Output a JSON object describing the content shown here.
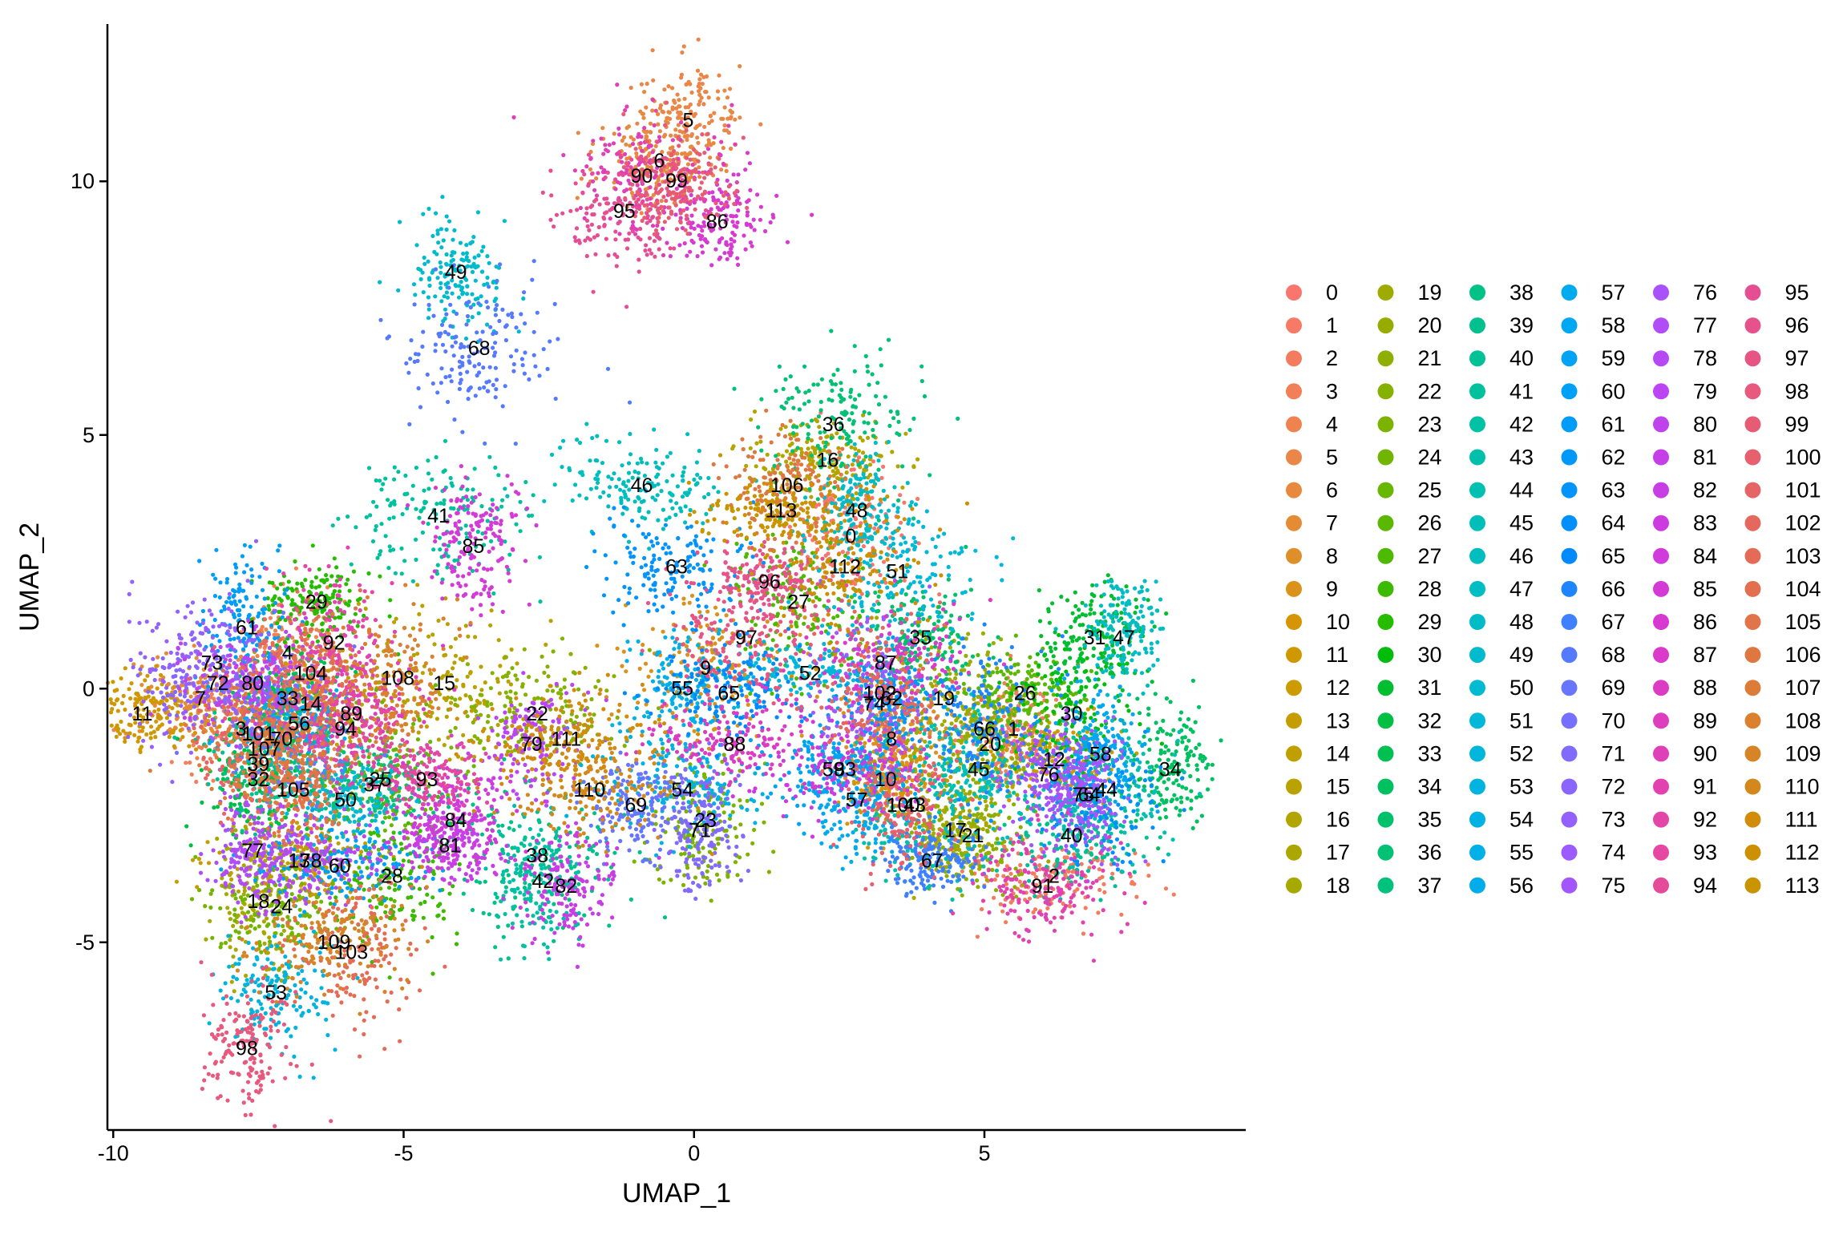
{
  "chart_data": {
    "type": "scatter",
    "title": "",
    "xlabel": "UMAP_1",
    "ylabel": "UMAP_2",
    "xlim": [
      -10.1,
      9.5
    ],
    "ylim": [
      -8.7,
      13.1
    ],
    "xticks": [
      -10,
      -5,
      0,
      5
    ],
    "yticks": [
      -5,
      0,
      5,
      10
    ],
    "xtick_labels": [
      "-10",
      "-5",
      "0",
      "5"
    ],
    "ytick_labels": [
      "-5",
      "0",
      "5",
      "10"
    ],
    "grid": false,
    "legend_position": "right",
    "legend_columns": 7,
    "clusters": [
      {
        "name": "0",
        "color": "#F8766D",
        "label_x": 2.7,
        "label_y": 3.0
      },
      {
        "name": "1",
        "color": "#F67A66",
        "label_x": 5.5,
        "label_y": -0.8
      },
      {
        "name": "2",
        "color": "#F37C5F",
        "label_x": 6.2,
        "label_y": -3.7
      },
      {
        "name": "3",
        "color": "#F18058",
        "label_x": -7.8,
        "label_y": -0.8
      },
      {
        "name": "4",
        "color": "#EE8350",
        "label_x": -7.0,
        "label_y": 0.7
      },
      {
        "name": "5",
        "color": "#EA8648",
        "label_x": -0.1,
        "label_y": 11.2
      },
      {
        "name": "6",
        "color": "#E7893F",
        "label_x": -0.6,
        "label_y": 10.4
      },
      {
        "name": "7",
        "color": "#E38C34",
        "label_x": -8.5,
        "label_y": -0.2
      },
      {
        "name": "8",
        "color": "#DF8F29",
        "label_x": 3.4,
        "label_y": -1.0
      },
      {
        "name": "9",
        "color": "#DA921A",
        "label_x": 0.2,
        "label_y": 0.4
      },
      {
        "name": "10",
        "color": "#D59505",
        "label_x": 3.3,
        "label_y": -1.8
      },
      {
        "name": "11",
        "color": "#D09800",
        "label_x": -9.5,
        "label_y": -0.5
      },
      {
        "name": "12",
        "color": "#CB9B00",
        "label_x": 6.2,
        "label_y": -1.4
      },
      {
        "name": "13",
        "color": "#C59D00",
        "label_x": -6.8,
        "label_y": -3.4
      },
      {
        "name": "14",
        "color": "#BFA000",
        "label_x": -6.6,
        "label_y": -0.3
      },
      {
        "name": "15",
        "color": "#B9A200",
        "label_x": -4.3,
        "label_y": 0.1
      },
      {
        "name": "16",
        "color": "#B3A500",
        "label_x": 2.3,
        "label_y": 4.5
      },
      {
        "name": "17",
        "color": "#ACA700",
        "label_x": 4.5,
        "label_y": -2.8
      },
      {
        "name": "18",
        "color": "#A5A900",
        "label_x": -7.5,
        "label_y": -4.2
      },
      {
        "name": "19",
        "color": "#9EAB00",
        "label_x": 4.3,
        "label_y": -0.2
      },
      {
        "name": "20",
        "color": "#96AD00",
        "label_x": 5.1,
        "label_y": -1.1
      },
      {
        "name": "21",
        "color": "#8EAF00",
        "label_x": 4.8,
        "label_y": -2.9
      },
      {
        "name": "22",
        "color": "#85B100",
        "label_x": -2.7,
        "label_y": -0.5
      },
      {
        "name": "23",
        "color": "#7CB300",
        "label_x": 0.2,
        "label_y": -2.6
      },
      {
        "name": "24",
        "color": "#72B500",
        "label_x": -7.1,
        "label_y": -4.3
      },
      {
        "name": "25",
        "color": "#67B600",
        "label_x": -5.4,
        "label_y": -1.8
      },
      {
        "name": "26",
        "color": "#5BB800",
        "label_x": 5.7,
        "label_y": -0.1
      },
      {
        "name": "27",
        "color": "#4DB900",
        "label_x": 1.8,
        "label_y": 1.7
      },
      {
        "name": "28",
        "color": "#3CBA00",
        "label_x": -5.2,
        "label_y": -3.7
      },
      {
        "name": "29",
        "color": "#26BC00",
        "label_x": -6.5,
        "label_y": 1.7
      },
      {
        "name": "30",
        "color": "#00BD0B",
        "label_x": 6.5,
        "label_y": -0.5
      },
      {
        "name": "31",
        "color": "#00BE2F",
        "label_x": 6.9,
        "label_y": 1.0
      },
      {
        "name": "32",
        "color": "#00BF43",
        "label_x": -7.5,
        "label_y": -1.8
      },
      {
        "name": "33",
        "color": "#00C052",
        "label_x": -7.0,
        "label_y": -0.2
      },
      {
        "name": "34",
        "color": "#00C05F",
        "label_x": 8.2,
        "label_y": -1.6
      },
      {
        "name": "35",
        "color": "#00C16A",
        "label_x": 3.9,
        "label_y": 1.0
      },
      {
        "name": "36",
        "color": "#00C174",
        "label_x": 2.4,
        "label_y": 5.2
      },
      {
        "name": "37",
        "color": "#00C17D",
        "label_x": -5.5,
        "label_y": -1.9
      },
      {
        "name": "38",
        "color": "#00C186",
        "label_x": -2.7,
        "label_y": -3.3
      },
      {
        "name": "39",
        "color": "#00C18E",
        "label_x": -7.5,
        "label_y": -1.5
      },
      {
        "name": "40",
        "color": "#00C196",
        "label_x": 6.5,
        "label_y": -2.9
      },
      {
        "name": "41",
        "color": "#00C19D",
        "label_x": -4.4,
        "label_y": 3.4
      },
      {
        "name": "42",
        "color": "#00C1A4",
        "label_x": -2.6,
        "label_y": -3.8
      },
      {
        "name": "43",
        "color": "#00C0AB",
        "label_x": 3.8,
        "label_y": -2.3
      },
      {
        "name": "44",
        "color": "#00C0B1",
        "label_x": 7.1,
        "label_y": -2.0
      },
      {
        "name": "45",
        "color": "#00BFB8",
        "label_x": 4.9,
        "label_y": -1.6
      },
      {
        "name": "46",
        "color": "#00BEBD",
        "label_x": -0.9,
        "label_y": 4.0
      },
      {
        "name": "47",
        "color": "#00BDC3",
        "label_x": 7.4,
        "label_y": 1.0
      },
      {
        "name": "48",
        "color": "#00BCC8",
        "label_x": 2.8,
        "label_y": 3.5
      },
      {
        "name": "49",
        "color": "#00BBCD",
        "label_x": -4.1,
        "label_y": 8.2
      },
      {
        "name": "50",
        "color": "#00BAD2",
        "label_x": -6.0,
        "label_y": -2.2
      },
      {
        "name": "51",
        "color": "#00B8D7",
        "label_x": 3.5,
        "label_y": 2.3
      },
      {
        "name": "52",
        "color": "#00B6DB",
        "label_x": 2.0,
        "label_y": 0.3
      },
      {
        "name": "53",
        "color": "#00B4DF",
        "label_x": -7.2,
        "label_y": -6.0
      },
      {
        "name": "54",
        "color": "#00B2E3",
        "label_x": -0.2,
        "label_y": -2.0
      },
      {
        "name": "55",
        "color": "#00B0E7",
        "label_x": -0.2,
        "label_y": 0.0
      },
      {
        "name": "56",
        "color": "#00ADEA",
        "label_x": -6.8,
        "label_y": -0.7
      },
      {
        "name": "57",
        "color": "#00AAEE",
        "label_x": 2.8,
        "label_y": -2.2
      },
      {
        "name": "58",
        "color": "#00A7F1",
        "label_x": 7.0,
        "label_y": -1.3
      },
      {
        "name": "59",
        "color": "#00A4F4",
        "label_x": 2.4,
        "label_y": -1.6
      },
      {
        "name": "60",
        "color": "#00A0F6",
        "label_x": -6.1,
        "label_y": -3.5
      },
      {
        "name": "61",
        "color": "#009DF8",
        "label_x": -7.7,
        "label_y": 1.2
      },
      {
        "name": "62",
        "color": "#0099FA",
        "label_x": 3.4,
        "label_y": -0.2
      },
      {
        "name": "63",
        "color": "#0094FC",
        "label_x": -0.3,
        "label_y": 2.4
      },
      {
        "name": "64",
        "color": "#008FFD",
        "label_x": 6.8,
        "label_y": -2.1
      },
      {
        "name": "65",
        "color": "#008AFE",
        "label_x": 0.6,
        "label_y": -0.1
      },
      {
        "name": "66",
        "color": "#1F85FF",
        "label_x": 5.0,
        "label_y": -0.8
      },
      {
        "name": "67",
        "color": "#3F80FF",
        "label_x": 4.1,
        "label_y": -3.4
      },
      {
        "name": "68",
        "color": "#557AFF",
        "label_x": -3.7,
        "label_y": 6.7
      },
      {
        "name": "69",
        "color": "#6775FF",
        "label_x": -1.0,
        "label_y": -2.3
      },
      {
        "name": "70",
        "color": "#7570FF",
        "label_x": -7.1,
        "label_y": -1.0
      },
      {
        "name": "71",
        "color": "#816BFF",
        "label_x": 0.1,
        "label_y": -2.8
      },
      {
        "name": "72",
        "color": "#8B65FF",
        "label_x": -8.2,
        "label_y": 0.1
      },
      {
        "name": "73",
        "color": "#9460FF",
        "label_x": -8.3,
        "label_y": 0.5
      },
      {
        "name": "74",
        "color": "#9C5BFE",
        "label_x": 3.1,
        "label_y": -0.3
      },
      {
        "name": "75",
        "color": "#A356FC",
        "label_x": 6.7,
        "label_y": -2.1
      },
      {
        "name": "76",
        "color": "#AA52FA",
        "label_x": 6.1,
        "label_y": -1.7
      },
      {
        "name": "77",
        "color": "#B04DF7",
        "label_x": -7.6,
        "label_y": -3.2
      },
      {
        "name": "78",
        "color": "#B649F4",
        "label_x": -6.6,
        "label_y": -3.4
      },
      {
        "name": "79",
        "color": "#BB45F1",
        "label_x": -2.8,
        "label_y": -1.1
      },
      {
        "name": "80",
        "color": "#C042ED",
        "label_x": -7.6,
        "label_y": 0.1
      },
      {
        "name": "81",
        "color": "#C53FE9",
        "label_x": -4.2,
        "label_y": -3.1
      },
      {
        "name": "82",
        "color": "#C93DE5",
        "label_x": -2.2,
        "label_y": -3.9
      },
      {
        "name": "83",
        "color": "#CD3BE0",
        "label_x": 2.6,
        "label_y": -1.6
      },
      {
        "name": "84",
        "color": "#D13ADB",
        "label_x": -4.1,
        "label_y": -2.6
      },
      {
        "name": "85",
        "color": "#D43AD6",
        "label_x": -3.8,
        "label_y": 2.8
      },
      {
        "name": "86",
        "color": "#D73AD0",
        "label_x": 0.4,
        "label_y": 9.2
      },
      {
        "name": "87",
        "color": "#DA3BCA",
        "label_x": 3.3,
        "label_y": 0.5
      },
      {
        "name": "88",
        "color": "#DC3CC4",
        "label_x": 0.7,
        "label_y": -1.1
      },
      {
        "name": "89",
        "color": "#DE3EBE",
        "label_x": -5.9,
        "label_y": -0.5
      },
      {
        "name": "90",
        "color": "#E040B7",
        "label_x": -0.9,
        "label_y": 10.1
      },
      {
        "name": "91",
        "color": "#E242B0",
        "label_x": 6.0,
        "label_y": -3.9
      },
      {
        "name": "92",
        "color": "#E345A9",
        "label_x": -6.2,
        "label_y": 0.9
      },
      {
        "name": "93",
        "color": "#E448A2",
        "label_x": -4.6,
        "label_y": -1.8
      },
      {
        "name": "94",
        "color": "#E54B9B",
        "label_x": -6.0,
        "label_y": -0.8
      },
      {
        "name": "95",
        "color": "#E64E93",
        "label_x": -1.2,
        "label_y": 9.4
      },
      {
        "name": "96",
        "color": "#E6528C",
        "label_x": 1.3,
        "label_y": 2.1
      },
      {
        "name": "97",
        "color": "#E75584",
        "label_x": 0.9,
        "label_y": 1.0
      },
      {
        "name": "98",
        "color": "#E7597D",
        "label_x": -7.7,
        "label_y": -7.1
      },
      {
        "name": "99",
        "color": "#E75C75",
        "label_x": -0.3,
        "label_y": 10.0
      },
      {
        "name": "100",
        "color": "#E6606E",
        "label_x": 3.6,
        "label_y": -2.3
      },
      {
        "name": "101",
        "color": "#E66466",
        "label_x": -7.5,
        "label_y": -0.9
      },
      {
        "name": "102",
        "color": "#E5685F",
        "label_x": 3.2,
        "label_y": -0.1
      },
      {
        "name": "103",
        "color": "#E46C57",
        "label_x": -5.9,
        "label_y": -5.2
      },
      {
        "name": "104",
        "color": "#E2704F",
        "label_x": -6.6,
        "label_y": 0.3
      },
      {
        "name": "105",
        "color": "#E17448",
        "label_x": -6.9,
        "label_y": -2.0
      },
      {
        "name": "106",
        "color": "#DF7840",
        "label_x": 1.6,
        "label_y": 4.0
      },
      {
        "name": "107",
        "color": "#DC7C38",
        "label_x": -7.4,
        "label_y": -1.2
      },
      {
        "name": "108",
        "color": "#DA802F",
        "label_x": -5.1,
        "label_y": 0.2
      },
      {
        "name": "109",
        "color": "#D78426",
        "label_x": -6.2,
        "label_y": -5.0
      },
      {
        "name": "110",
        "color": "#D4881B",
        "label_x": -1.8,
        "label_y": -2.0
      },
      {
        "name": "111",
        "color": "#D18C0C",
        "label_x": -2.2,
        "label_y": -1.0
      },
      {
        "name": "112",
        "color": "#CD9000",
        "label_x": 2.6,
        "label_y": 2.4
      },
      {
        "name": "113",
        "color": "#C99400",
        "label_x": 1.5,
        "label_y": 3.5
      }
    ]
  }
}
